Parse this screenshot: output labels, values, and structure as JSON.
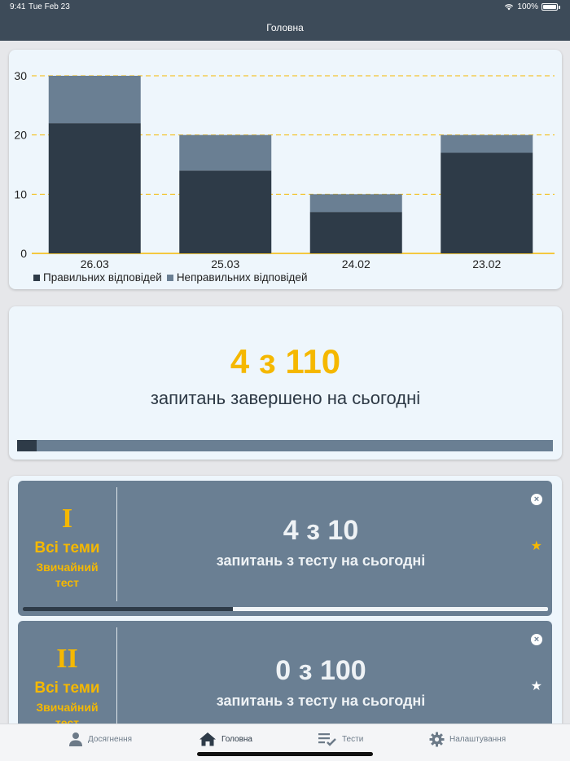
{
  "status_bar": {
    "time": "9:41",
    "date": "Tue Feb 23",
    "battery": "100%"
  },
  "nav": {
    "title": "Головна"
  },
  "chart_data": {
    "type": "bar",
    "stacked": true,
    "categories": [
      "26.03",
      "25.03",
      "24.02",
      "23.02"
    ],
    "series": [
      {
        "name": "Правильних відповідей",
        "values": [
          22,
          14,
          7,
          17
        ],
        "color": "#2e3b48"
      },
      {
        "name": "Неправильних відповідей",
        "values": [
          8,
          6,
          3,
          3
        ],
        "color": "#6a7f93"
      }
    ],
    "yticks": [
      "0",
      "10",
      "20",
      "30"
    ],
    "ylim": [
      0,
      30
    ],
    "grid_color": "#f5b800",
    "grid": true,
    "legend_position": "bottom-left"
  },
  "daily": {
    "count": "4 з 110",
    "subtitle": "запитань завершено на сьогодні",
    "progress": 0.036
  },
  "tests": [
    {
      "numeral": "I",
      "topic": "Всі теми",
      "type_line1": "Звичайний",
      "type_line2": "тест",
      "count": "4 з 10",
      "subtitle": "запитань з тесту на сьогодні",
      "close_icon": "×",
      "star_icon": "★",
      "star_color": "#f5b800",
      "progress": 0.4
    },
    {
      "numeral": "II",
      "topic": "Всі теми",
      "type_line1": "Звичайний",
      "type_line2": "тест",
      "count": "0 з 100",
      "subtitle": "запитань з тесту на сьогодні",
      "close_icon": "×",
      "star_icon": "★",
      "star_color": "#ffffff",
      "progress": 0
    }
  ],
  "tabbar": {
    "items": [
      {
        "label": "Досягнення",
        "icon": "person-icon"
      },
      {
        "label": "Головна",
        "icon": "home-icon",
        "active": true
      },
      {
        "label": "Тести",
        "icon": "checklist-icon"
      },
      {
        "label": "Налаштування",
        "icon": "gear-icon"
      }
    ]
  },
  "colors": {
    "accent": "#f5b800",
    "dark": "#2e3b48",
    "slate": "#6a7f93",
    "card": "#eef6fc"
  }
}
